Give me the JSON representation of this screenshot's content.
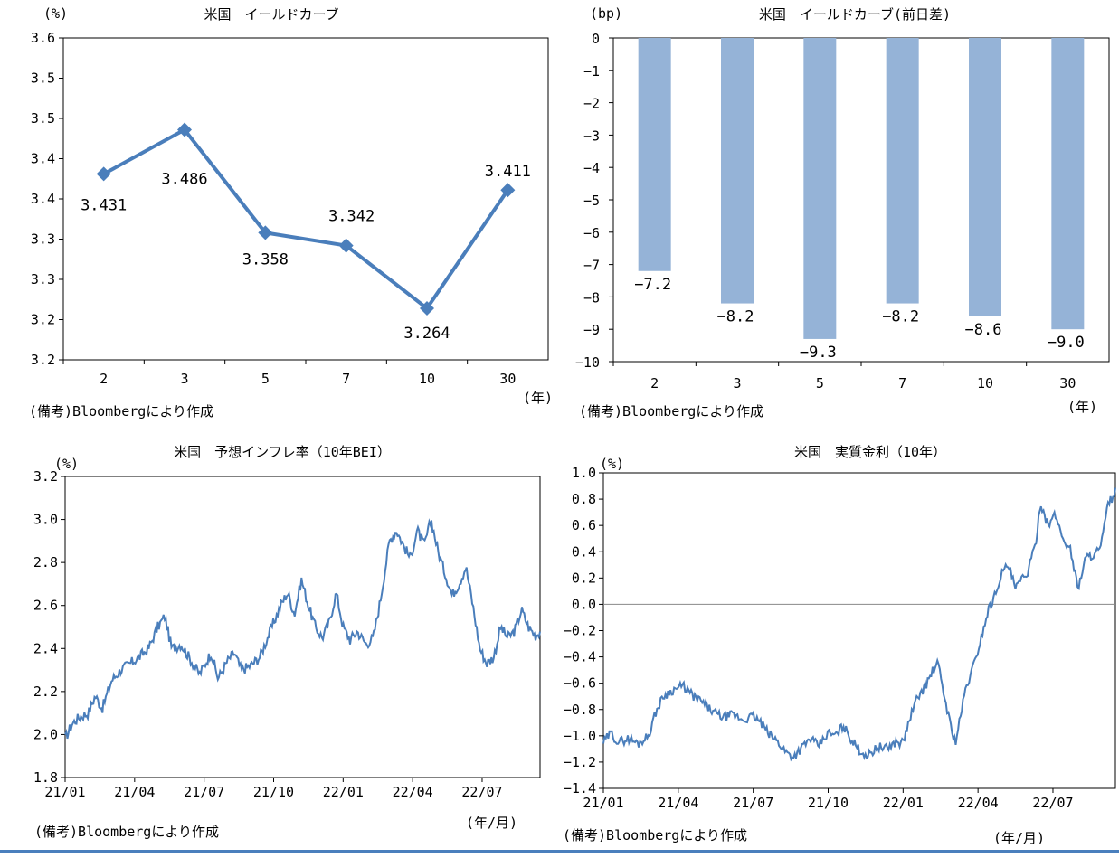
{
  "colors": {
    "line": "#4a7ebb",
    "bar": "#95b3d7",
    "axis": "#000000",
    "rule": "#4a7fbd"
  },
  "chart_data": [
    {
      "type": "line",
      "title": "米国　イールドカーブ",
      "unit": "(%)",
      "xunit": "(年)",
      "note": "(備考)Bloombergにより作成",
      "categories": [
        "2",
        "3",
        "5",
        "7",
        "10",
        "30"
      ],
      "values": [
        3.431,
        3.486,
        3.358,
        3.342,
        3.264,
        3.411
      ],
      "data_labels": [
        "3.431",
        "3.486",
        "3.358",
        "3.342",
        "3.264",
        "3.411"
      ],
      "ylim": [
        3.2,
        3.6
      ],
      "yticks": [
        "3.6",
        "3.5",
        "3.5",
        "3.4",
        "3.4",
        "3.3",
        "3.3",
        "3.2",
        "3.2"
      ],
      "marker": "diamond"
    },
    {
      "type": "bar",
      "title": "米国　イールドカーブ(前日差)",
      "unit": "(bp)",
      "xunit": "(年)",
      "note": "(備考)Bloombergにより作成",
      "categories": [
        "2",
        "3",
        "5",
        "7",
        "10",
        "30"
      ],
      "values": [
        -7.2,
        -8.2,
        -9.3,
        -8.2,
        -8.6,
        -9.0
      ],
      "data_labels": [
        "-7.2",
        "-8.2",
        "-9.3",
        "-8.2",
        "-8.6",
        "-9.0"
      ],
      "ylim": [
        -10,
        0
      ],
      "yticks": [
        "0",
        "-1",
        "-2",
        "-3",
        "-4",
        "-5",
        "-6",
        "-7",
        "-8",
        "-9",
        "-10"
      ]
    },
    {
      "type": "line",
      "title": "米国　予想インフレ率（10年BEI）",
      "unit": "(%)",
      "xunit": "(年/月)",
      "note": "(備考)Bloombergにより作成",
      "x_ticks": [
        "21/01",
        "21/04",
        "21/07",
        "21/10",
        "22/01",
        "22/04",
        "22/07"
      ],
      "yticks": [
        "3.2",
        "3.0",
        "2.8",
        "2.6",
        "2.4",
        "2.2",
        "2.0",
        "1.8"
      ],
      "ylim": [
        1.8,
        3.2
      ],
      "x_range_months": [
        0,
        20.5
      ],
      "anchors": [
        [
          0,
          1.98
        ],
        [
          0.3,
          2.05
        ],
        [
          0.6,
          2.08
        ],
        [
          1.0,
          2.1
        ],
        [
          1.3,
          2.18
        ],
        [
          1.6,
          2.12
        ],
        [
          2.0,
          2.25
        ],
        [
          2.4,
          2.3
        ],
        [
          2.8,
          2.33
        ],
        [
          3.2,
          2.36
        ],
        [
          3.6,
          2.4
        ],
        [
          4.0,
          2.5
        ],
        [
          4.3,
          2.55
        ],
        [
          4.6,
          2.4
        ],
        [
          5.0,
          2.42
        ],
        [
          5.4,
          2.35
        ],
        [
          5.8,
          2.28
        ],
        [
          6.0,
          2.32
        ],
        [
          6.3,
          2.38
        ],
        [
          6.6,
          2.26
        ],
        [
          7.0,
          2.34
        ],
        [
          7.3,
          2.38
        ],
        [
          7.6,
          2.3
        ],
        [
          8.0,
          2.32
        ],
        [
          8.4,
          2.36
        ],
        [
          8.7,
          2.44
        ],
        [
          9.0,
          2.52
        ],
        [
          9.3,
          2.6
        ],
        [
          9.6,
          2.66
        ],
        [
          9.9,
          2.56
        ],
        [
          10.2,
          2.72
        ],
        [
          10.5,
          2.6
        ],
        [
          10.8,
          2.5
        ],
        [
          11.1,
          2.45
        ],
        [
          11.4,
          2.52
        ],
        [
          11.7,
          2.66
        ],
        [
          12.0,
          2.5
        ],
        [
          12.3,
          2.44
        ],
        [
          12.6,
          2.48
        ],
        [
          13.0,
          2.42
        ],
        [
          13.3,
          2.45
        ],
        [
          13.6,
          2.62
        ],
        [
          14.0,
          2.9
        ],
        [
          14.3,
          2.95
        ],
        [
          14.6,
          2.88
        ],
        [
          14.9,
          2.82
        ],
        [
          15.2,
          2.95
        ],
        [
          15.5,
          2.88
        ],
        [
          15.8,
          3.0
        ],
        [
          16.1,
          2.85
        ],
        [
          16.4,
          2.75
        ],
        [
          16.7,
          2.65
        ],
        [
          17.0,
          2.7
        ],
        [
          17.3,
          2.78
        ],
        [
          17.6,
          2.6
        ],
        [
          17.9,
          2.4
        ],
        [
          18.2,
          2.33
        ],
        [
          18.5,
          2.36
        ],
        [
          18.8,
          2.5
        ],
        [
          19.1,
          2.45
        ],
        [
          19.4,
          2.48
        ],
        [
          19.7,
          2.58
        ],
        [
          20.0,
          2.5
        ],
        [
          20.3,
          2.46
        ],
        [
          20.5,
          2.48
        ]
      ]
    },
    {
      "type": "line",
      "title": "米国　実質金利（10年）",
      "unit": "(%)",
      "xunit": "(年/月)",
      "note": "(備考)Bloombergにより作成",
      "x_ticks": [
        "21/01",
        "21/04",
        "21/07",
        "21/10",
        "22/01",
        "22/04",
        "22/07"
      ],
      "yticks": [
        "1.0",
        "0.8",
        "0.6",
        "0.4",
        "0.2",
        "0.0",
        "-0.2",
        "-0.4",
        "-0.6",
        "-0.8",
        "-1.0",
        "-1.2",
        "-1.4"
      ],
      "ylim": [
        -1.4,
        1.0
      ],
      "x_range_months": [
        0,
        20.5
      ],
      "anchors": [
        [
          0,
          -1.05
        ],
        [
          0.3,
          -0.98
        ],
        [
          0.6,
          -1.05
        ],
        [
          1.0,
          -1.02
        ],
        [
          1.4,
          -1.06
        ],
        [
          1.8,
          -1.0
        ],
        [
          2.1,
          -0.82
        ],
        [
          2.4,
          -0.7
        ],
        [
          2.8,
          -0.65
        ],
        [
          3.2,
          -0.62
        ],
        [
          3.6,
          -0.7
        ],
        [
          4.0,
          -0.75
        ],
        [
          4.4,
          -0.82
        ],
        [
          4.8,
          -0.86
        ],
        [
          5.2,
          -0.84
        ],
        [
          5.6,
          -0.88
        ],
        [
          6.0,
          -0.85
        ],
        [
          6.3,
          -0.9
        ],
        [
          6.6,
          -0.98
        ],
        [
          7.0,
          -1.05
        ],
        [
          7.3,
          -1.12
        ],
        [
          7.6,
          -1.16
        ],
        [
          8.0,
          -1.08
        ],
        [
          8.3,
          -1.02
        ],
        [
          8.6,
          -1.08
        ],
        [
          9.0,
          -0.98
        ],
        [
          9.3,
          -1.0
        ],
        [
          9.6,
          -0.92
        ],
        [
          10.0,
          -1.05
        ],
        [
          10.3,
          -1.12
        ],
        [
          10.6,
          -1.15
        ],
        [
          11.0,
          -1.08
        ],
        [
          11.3,
          -1.1
        ],
        [
          11.7,
          -1.05
        ],
        [
          12.0,
          -1.05
        ],
        [
          12.3,
          -0.85
        ],
        [
          12.6,
          -0.7
        ],
        [
          12.9,
          -0.62
        ],
        [
          13.2,
          -0.5
        ],
        [
          13.4,
          -0.45
        ],
        [
          13.6,
          -0.65
        ],
        [
          13.9,
          -0.92
        ],
        [
          14.1,
          -1.05
        ],
        [
          14.3,
          -0.85
        ],
        [
          14.5,
          -0.65
        ],
        [
          14.8,
          -0.48
        ],
        [
          15.0,
          -0.35
        ],
        [
          15.2,
          -0.2
        ],
        [
          15.4,
          -0.05
        ],
        [
          15.7,
          0.08
        ],
        [
          15.9,
          0.22
        ],
        [
          16.2,
          0.3
        ],
        [
          16.5,
          0.12
        ],
        [
          16.8,
          0.2
        ],
        [
          17.0,
          0.25
        ],
        [
          17.3,
          0.45
        ],
        [
          17.5,
          0.78
        ],
        [
          17.8,
          0.6
        ],
        [
          18.1,
          0.68
        ],
        [
          18.4,
          0.5
        ],
        [
          18.7,
          0.42
        ],
        [
          19.0,
          0.12
        ],
        [
          19.3,
          0.35
        ],
        [
          19.6,
          0.38
        ],
        [
          19.9,
          0.42
        ],
        [
          20.2,
          0.75
        ],
        [
          20.5,
          0.86
        ]
      ]
    }
  ]
}
